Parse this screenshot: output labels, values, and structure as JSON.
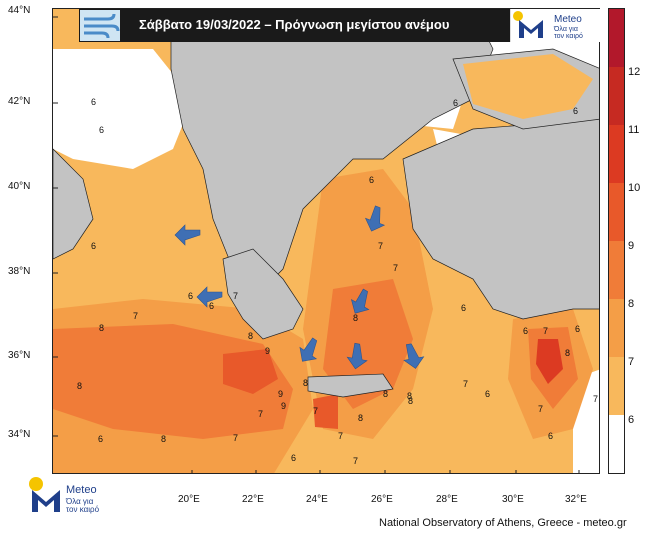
{
  "title": "Σάββατο 19/03/2022 – Πρόγνωση μεγίστου ανέμου",
  "brand": {
    "name": "Meteo",
    "tagline_line1": "Όλα για",
    "tagline_line2": "τον καιρό"
  },
  "credit": "National Observatory of Athens, Greece - meteo.gr",
  "latitude_labels": [
    "44°N",
    "42°N",
    "40°N",
    "38°N",
    "36°N",
    "34°N"
  ],
  "longitude_labels": [
    "20°E",
    "22°E",
    "24°E",
    "26°E",
    "28°E",
    "30°E",
    "32°E"
  ],
  "colorbar": {
    "labels": [
      "12",
      "11",
      "10",
      "9",
      "8",
      "7",
      "6"
    ],
    "colors": [
      "#b2182b",
      "#c62a22",
      "#dc3a22",
      "#e8592a",
      "#f07c38",
      "#f49e47",
      "#f8b85c",
      "#ffffff"
    ]
  },
  "contour_labels": [
    "6",
    "6",
    "6",
    "6",
    "7",
    "6",
    "6",
    "6",
    "7",
    "7",
    "8",
    "8",
    "8",
    "8",
    "9",
    "8",
    "8",
    "7",
    "6",
    "7",
    "6",
    "8",
    "9",
    "8",
    "8",
    "7",
    "6",
    "8",
    "7",
    "6",
    "7",
    "8",
    "6",
    "7",
    "7",
    "6",
    "7",
    "9",
    "7",
    "6",
    "7",
    "6"
  ],
  "colors": {
    "land": "#c3c3c3",
    "sea_calm": "#ffffff",
    "arrow": "#3f6fb4",
    "banner": "#1a1a1a"
  },
  "icons": {
    "arrow": "wind-direction-arrow-icon",
    "logo": "meteo-logo-icon",
    "wind": "wind-symbol-icon"
  }
}
